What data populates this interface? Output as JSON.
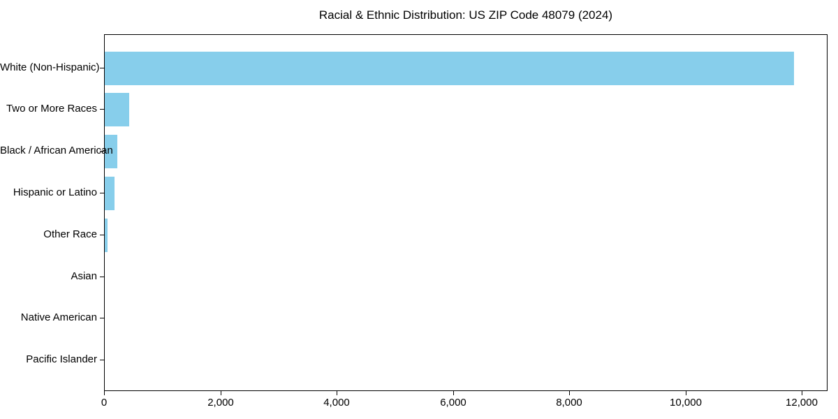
{
  "figure": {
    "background": "#ffffff",
    "text_color": "#000000"
  },
  "chart_data": {
    "type": "bar",
    "orientation": "horizontal",
    "title": "Racial & Ethnic Distribution: US ZIP Code 48079 (2024)",
    "categories": [
      "White (Non-Hispanic)",
      "Two or More Races",
      "Black / African American",
      "Hispanic or Latino",
      "Other Race",
      "Asian",
      "Native American",
      "Pacific Islander"
    ],
    "values": [
      11850,
      420,
      210,
      165,
      50,
      0,
      0,
      0
    ],
    "xlabel": "",
    "ylabel": "",
    "xlim": [
      0,
      12440
    ],
    "xticks": [
      0,
      2000,
      4000,
      6000,
      8000,
      10000,
      12000
    ],
    "xtick_labels": [
      "0",
      "2,000",
      "4,000",
      "6,000",
      "8,000",
      "10,000",
      "12,000"
    ],
    "bar_color": "#87CEEB",
    "spine_color": "#000000",
    "grid": false,
    "legend": null
  }
}
